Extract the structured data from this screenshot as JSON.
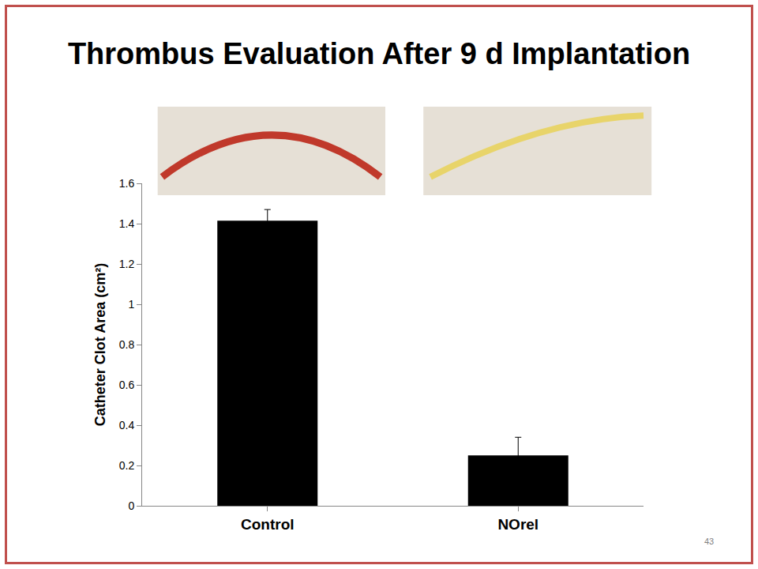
{
  "chart_data": {
    "type": "bar",
    "title": "Thrombus Evaluation After 9 d Implantation",
    "y_label": "Catheter Clot Area (cm²)",
    "categories": [
      "Control",
      "NOrel"
    ],
    "values": [
      1.415,
      0.25
    ],
    "errors": [
      0.055,
      0.09
    ],
    "color": "#000000",
    "ylim": [
      0,
      1.6
    ],
    "yticks": [
      0,
      0.2,
      0.4,
      0.6,
      0.8,
      1,
      1.2,
      1.4,
      1.6
    ],
    "grid": false,
    "annotations": [
      {
        "text": "43"
      }
    ]
  }
}
